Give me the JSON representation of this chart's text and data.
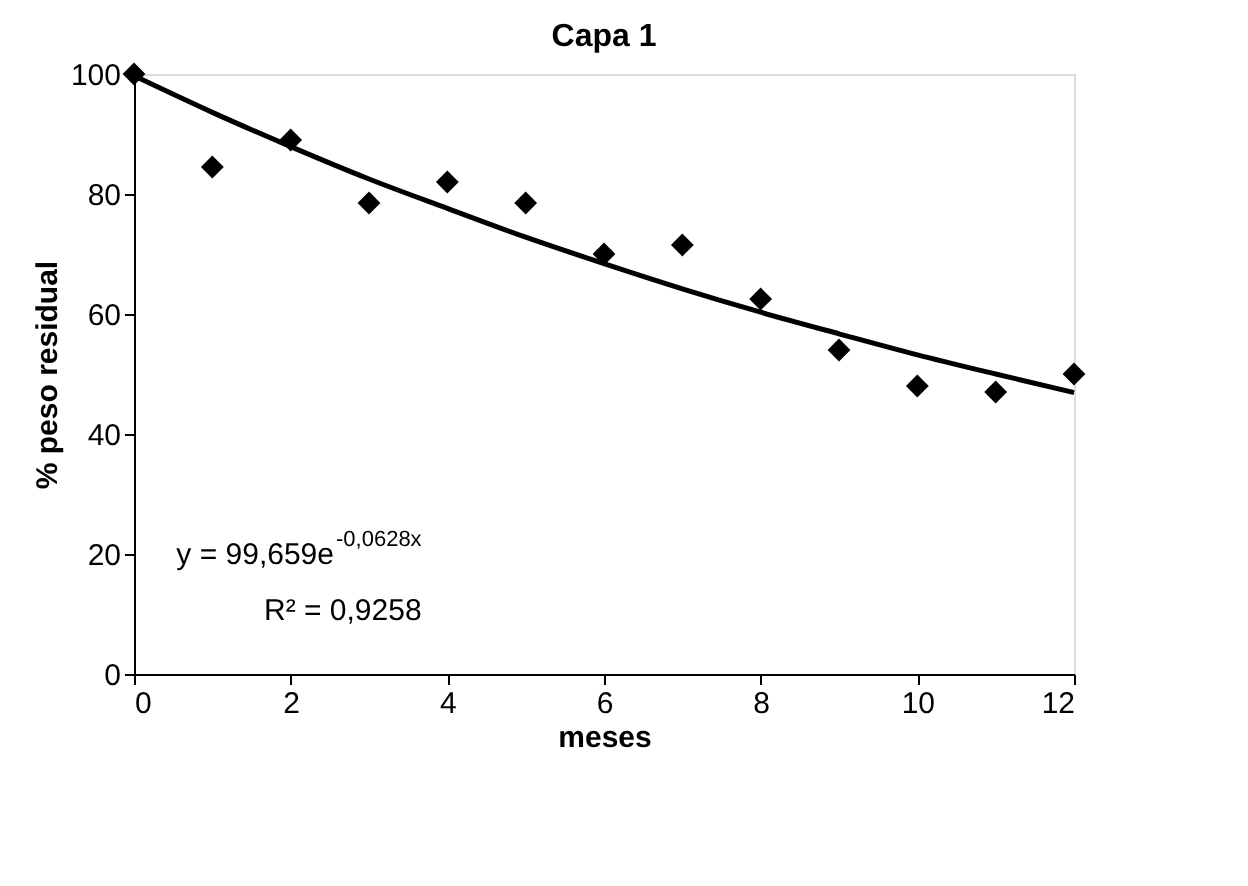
{
  "chart_data": {
    "type": "scatter",
    "title": "Capa 1",
    "xlabel": "meses",
    "ylabel": "% peso residual",
    "xlim": [
      0,
      12
    ],
    "xticks": [
      0,
      2,
      4,
      6,
      8,
      10,
      12
    ],
    "ylim": [
      0,
      100
    ],
    "yticks": [
      0,
      20,
      40,
      60,
      80,
      100
    ],
    "grid": false,
    "marker": "diamond",
    "series": [
      {
        "color": "#000000",
        "x": [
          0,
          1,
          2,
          3,
          4,
          5,
          6,
          7,
          8,
          9,
          10,
          11,
          12
        ],
        "values": [
          100,
          84.5,
          89,
          78.5,
          82,
          78.5,
          70,
          71.5,
          62.5,
          54,
          48,
          47,
          50
        ]
      },
      {
        "type": "line",
        "color": "#000000",
        "marker": "none",
        "line_style": "solid",
        "x": [
          0,
          1,
          2,
          3,
          4,
          5,
          6,
          7,
          8,
          9,
          10,
          11,
          12
        ],
        "values": [
          99.7,
          93.6,
          87.9,
          82.5,
          77.6,
          72.8,
          68.4,
          64.2,
          60.3,
          56.7,
          53.2,
          50.0,
          46.9
        ]
      }
    ],
    "annotations": [
      "y = 99,659e$^{-0,0628x}$",
      "R² = 0,9258"
    ]
  }
}
